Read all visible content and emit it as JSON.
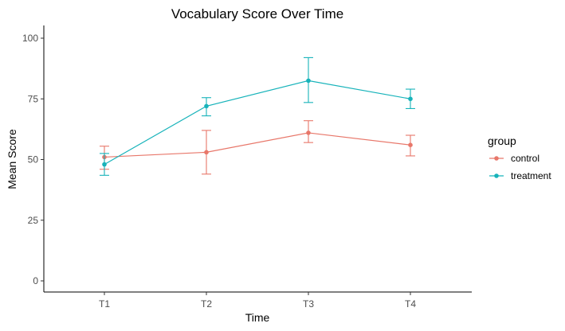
{
  "chart_data": {
    "type": "line",
    "title": "Vocabulary Score Over Time",
    "xlabel": "Time",
    "ylabel": "Mean Score",
    "categories": [
      "T1",
      "T2",
      "T3",
      "T4"
    ],
    "ylim": [
      0,
      100
    ],
    "yticks": [
      0,
      25,
      50,
      75,
      100
    ],
    "grid": false,
    "legend": {
      "title": "group",
      "position": "right"
    },
    "series": [
      {
        "name": "control",
        "color": "#E8776A",
        "values": [
          51,
          53,
          61,
          56
        ],
        "error_low": [
          46,
          44,
          57,
          51.5
        ],
        "error_high": [
          55.5,
          62,
          66,
          60
        ]
      },
      {
        "name": "treatment",
        "color": "#17B3BA",
        "values": [
          48,
          72,
          82.5,
          75
        ],
        "error_low": [
          43.5,
          68,
          73.5,
          71
        ],
        "error_high": [
          52.5,
          75.5,
          92,
          79
        ]
      }
    ]
  }
}
